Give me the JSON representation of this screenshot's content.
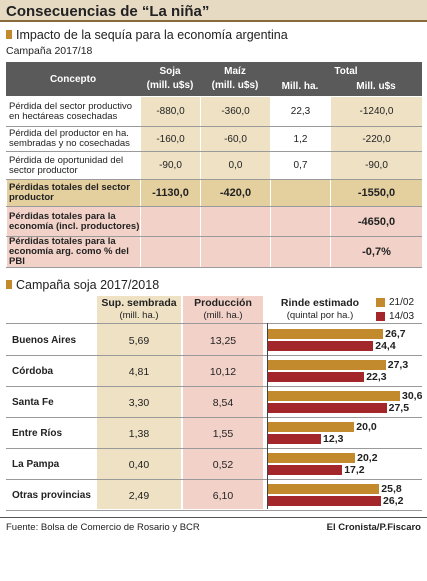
{
  "title": "Consecuencias de “La niña”",
  "impact": {
    "title": "Impacto de la sequía para la economía argentina",
    "subtitle": "Campaña 2017/18",
    "header": {
      "concepto": "Concepto",
      "soja": "Soja",
      "soja_unit": "(mill. u$s)",
      "maiz": "Maíz",
      "maiz_unit": "(mill. u$s)",
      "total": "Total",
      "total_ha": "Mill. ha.",
      "total_usd": "Mill. u$s"
    },
    "rows": [
      [
        "Pérdida del sector productivo en hectáreas cosechadas",
        "-880,0",
        "-360,0",
        "22,3",
        "-1240,0"
      ],
      [
        "Pérdida del productor en ha. sembradas y no cosechadas",
        "-160,0",
        "-60,0",
        "1,2",
        "-220,0"
      ],
      [
        "Pérdida de oportunidad del sector productor",
        "-90,0",
        "0,0",
        "0,7",
        "-90,0"
      ],
      [
        "Pérdidas totales del sector productor",
        "-1130,0",
        "-420,0",
        null,
        "-1550,0"
      ],
      [
        "Pérdidas totales para la economía (incl. productores)",
        null,
        null,
        null,
        "-4650,0"
      ],
      [
        "Pérdidas totales para la economía arg. como % del PBI",
        null,
        null,
        null,
        "-0,7%"
      ]
    ]
  },
  "chart_data": {
    "type": "bar",
    "orientation": "horizontal",
    "title": "Campaña soja 2017/2018",
    "columns": [
      {
        "label": "Sup. sembrada",
        "unit": "(mill. ha.)"
      },
      {
        "label": "Producción",
        "unit": "(mill. ha.)"
      },
      {
        "label": "Rinde estimado",
        "unit": "(quintal por ha.)"
      }
    ],
    "categories": [
      "Buenos Aires",
      "Córdoba",
      "Santa Fe",
      "Entre Ríos",
      "La Pampa",
      "Otras provincias"
    ],
    "sown": [
      "5,69",
      "4,81",
      "3,30",
      "1,38",
      "0,40",
      "2,49"
    ],
    "production": [
      "13,25",
      "10,12",
      "8,54",
      "1,55",
      "0,52",
      "6,10"
    ],
    "series": [
      {
        "name": "21/02",
        "color": "#c28a2c",
        "values": [
          26.7,
          27.3,
          30.6,
          20.0,
          20.2,
          25.8
        ],
        "value_labels": [
          "26,7",
          "27,3",
          "30,6",
          "20,0",
          "20,2",
          "25,8"
        ]
      },
      {
        "name": "14/03",
        "color": "#a3262a",
        "values": [
          24.4,
          22.3,
          27.5,
          12.3,
          17.2,
          26.2
        ],
        "value_labels": [
          "24,4",
          "22,3",
          "27,5",
          "12,3",
          "17,2",
          "26,2"
        ]
      }
    ]
  },
  "footer": {
    "source": "Fuente: Bolsa de Comercio de Rosario y BCR",
    "credit": "El Cronista/P.Fiscaro"
  }
}
